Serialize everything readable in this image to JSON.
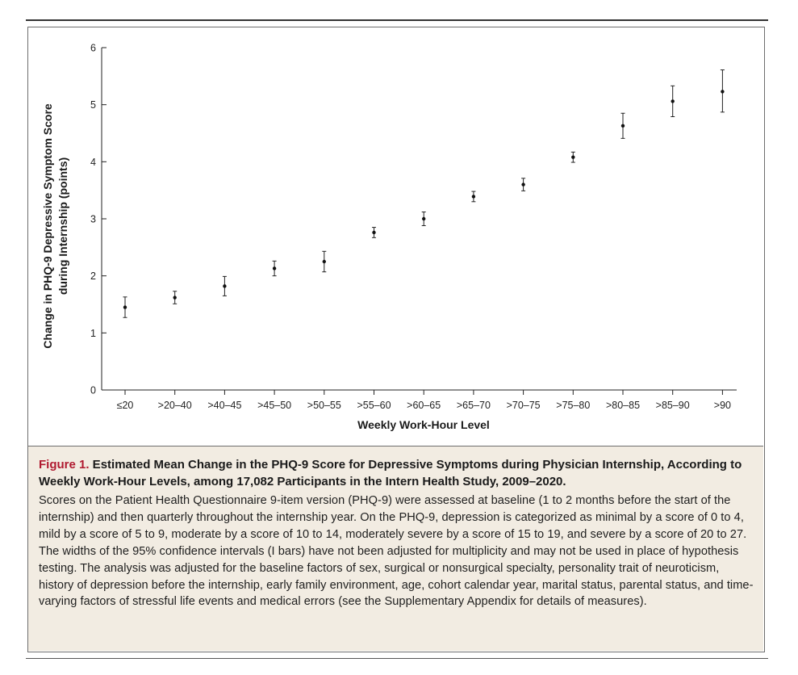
{
  "chart_data": {
    "type": "scatter",
    "title": "",
    "xlabel": "Weekly Work-Hour Level",
    "ylabel_line1": "Change in PHQ-9 Depressive Symptom Score",
    "ylabel_line2": "during Internship (points)",
    "ylim": [
      0,
      6
    ],
    "yticks": [
      0,
      1,
      2,
      3,
      4,
      5,
      6
    ],
    "grid": false,
    "categories": [
      "≤20",
      ">20–40",
      ">40–45",
      ">45–50",
      ">50–55",
      ">55–60",
      ">60–65",
      ">65–70",
      ">70–75",
      ">75–80",
      ">80–85",
      ">85–90",
      ">90"
    ],
    "series": [
      {
        "values": [
          1.45,
          1.62,
          1.82,
          2.13,
          2.25,
          2.76,
          3.0,
          3.39,
          3.6,
          4.08,
          4.63,
          5.06,
          5.23
        ],
        "ci_low": [
          1.27,
          1.51,
          1.65,
          2.0,
          2.07,
          2.67,
          2.88,
          3.3,
          3.49,
          3.99,
          4.41,
          4.79,
          4.87
        ],
        "ci_high": [
          1.63,
          1.73,
          1.99,
          2.26,
          2.43,
          2.85,
          3.12,
          3.48,
          3.71,
          4.17,
          4.85,
          5.33,
          5.61
        ]
      }
    ]
  },
  "caption": {
    "fig_label": "Figure 1.",
    "title": " Estimated Mean Change in the PHQ-9 Score for Depressive Symptoms during Physician Internship, According to Weekly Work-Hour Levels, among 17,082 Participants in the Intern Health Study, 2009–2020.",
    "body": "Scores on the Patient Health Questionnaire 9-item version (PHQ-9) were assessed at baseline (1 to 2 months before the start of the internship) and then quarterly throughout the internship year. On the PHQ-9, depression is categorized as minimal by a score of 0 to 4, mild by a score of 5 to 9, moderate by a score of 10 to 14, moderately severe by a score of 15 to 19, and severe by a score of 20 to 27. The widths of the 95% confidence intervals (I bars) have not been adjusted for multiplicity and may not be used in place of hypothesis testing. The analysis was adjusted for the baseline factors of sex, surgical or nonsurgical specialty, personality trait of neuroticism, history of depression before the internship, early family environment, age, cohort calendar year, marital status, parental status, and time-varying factors of stressful life events and medical errors (see the Supplementary Appendix for details of measures)."
  },
  "colors": {
    "caption_bg": "#f2ece2",
    "figure_label": "#b0192f",
    "ink": "#1a1a1a"
  }
}
